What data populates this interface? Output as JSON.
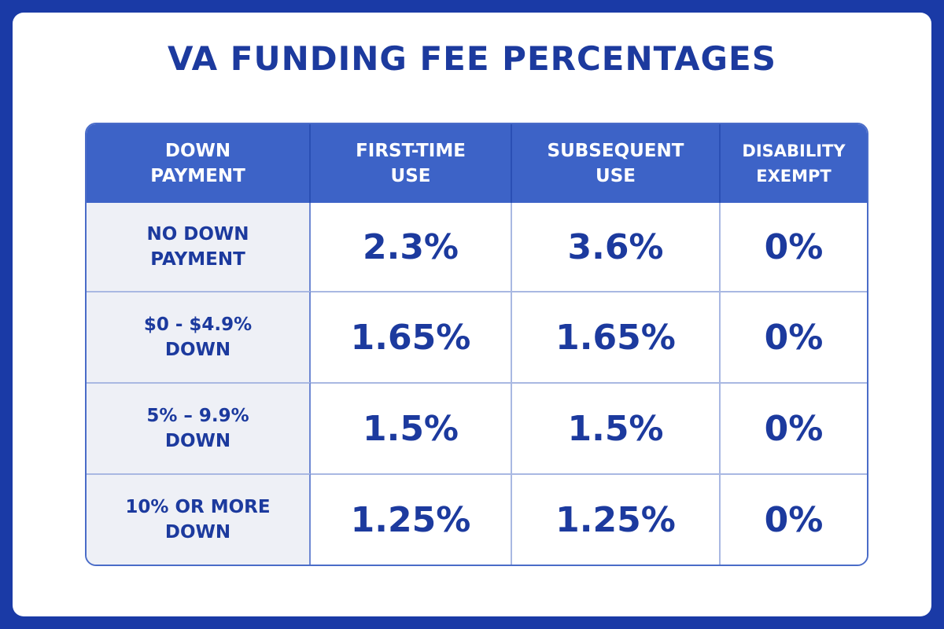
{
  "title": "VA FUNDING FEE PERCENTAGES",
  "headers": {
    "c0": [
      "DOWN",
      "PAYMENT"
    ],
    "c1": [
      "FIRST-TIME",
      "USE"
    ],
    "c2": [
      "SUBSEQUENT",
      "USE"
    ],
    "c3": [
      "DISABILITY",
      "EXEMPT"
    ]
  },
  "rows": [
    {
      "label": [
        "NO DOWN",
        "PAYMENT"
      ],
      "first_time": "2.3%",
      "subsequent": "3.6%",
      "exempt": "0%"
    },
    {
      "label": [
        "$0 - $4.9%",
        "DOWN"
      ],
      "first_time": "1.65%",
      "subsequent": "1.65%",
      "exempt": "0%"
    },
    {
      "label": [
        "5% – 9.9%",
        "DOWN"
      ],
      "first_time": "1.5%",
      "subsequent": "1.5%",
      "exempt": "0%"
    },
    {
      "label": [
        "10% OR MORE",
        "DOWN"
      ],
      "first_time": "1.25%",
      "subsequent": "1.25%",
      "exempt": "0%"
    }
  ],
  "colors": {
    "frame": "#1a3aa6",
    "header_bg": "#3d63c7",
    "text": "#1c3a9e",
    "label_bg": "#eef0f6"
  }
}
